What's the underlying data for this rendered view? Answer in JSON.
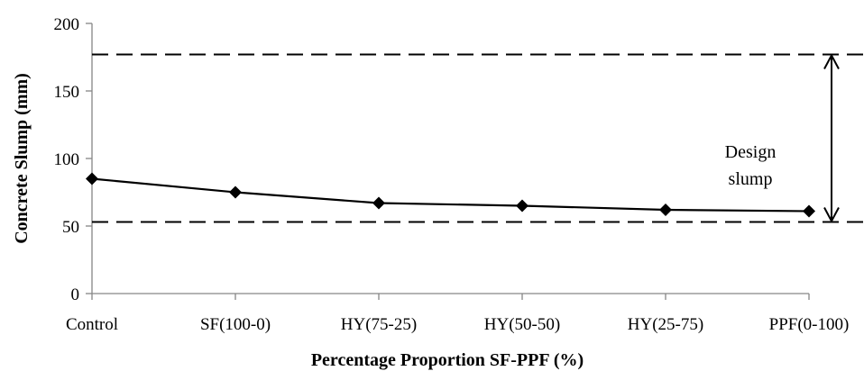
{
  "chart_data": {
    "type": "line",
    "title": "",
    "xlabel": "Percentage Proportion SF-PPF (%)",
    "ylabel": "Concrete Slump (mm)",
    "categories": [
      "Control",
      "SF(100-0)",
      "HY(75-25)",
      "HY(50-50)",
      "HY(25-75)",
      "PPF(0-100)"
    ],
    "series": [
      {
        "values": [
          85,
          75,
          67,
          65,
          62,
          61
        ],
        "color": "#000000",
        "marker": "diamond"
      }
    ],
    "ylim": [
      0,
      200
    ],
    "yticks": [
      0,
      50,
      100,
      150,
      200
    ],
    "grid": false,
    "legend": "none",
    "design_range": {
      "lower": 53,
      "upper": 177,
      "label_line1": "Design",
      "label_line2": "slump",
      "line_style": "dashed"
    }
  }
}
